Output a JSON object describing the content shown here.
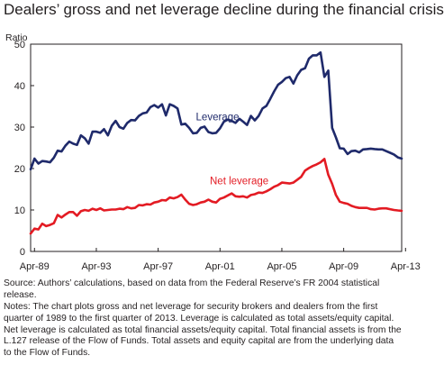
{
  "title": "Dealers’ gross and net leverage decline during the financial crisis",
  "source": "Source: Authors’ calculations, based on data from the Federal Reserve’s FR 2004 statistical release.",
  "notes": "Notes: The chart plots gross and net leverage for security brokers and dealers from the first quarter of 1989 to the first quarter of 2013. Leverage is calculated as total assets/equity capital. Net leverage is calculated as total financial assets/equity capital. Total financial assets is from the L.127 release of the Flow of Funds. Total assets and equity capital are from the underlying data to the Flow of Funds.",
  "chart_data": {
    "type": "line",
    "title": "Dealers’ gross and net leverage decline during the financial crisis",
    "ylabel": "Ratio",
    "xlabel": "",
    "ylim": [
      0,
      50
    ],
    "yticks": [
      "0",
      "10",
      "20",
      "30",
      "40",
      "50"
    ],
    "x_start": "1989-01",
    "xticks": [
      "Apr-89",
      "Apr-93",
      "Apr-97",
      "Apr-01",
      "Apr-05",
      "Apr-09",
      "Apr-13"
    ],
    "grid": false,
    "series": [
      {
        "name": "Leverage",
        "color": "#1f2a6b",
        "values": [
          19.8,
          22.4,
          21.2,
          21.8,
          21.7,
          21.5,
          22.6,
          24.3,
          24.1,
          25.5,
          26.5,
          26.0,
          25.7,
          28.0,
          27.3,
          26.0,
          28.9,
          28.9,
          28.6,
          29.5,
          28.0,
          30.3,
          31.5,
          30.0,
          29.6,
          31.0,
          31.7,
          31.6,
          32.7,
          33.3,
          33.5,
          34.8,
          35.3,
          34.7,
          35.5,
          32.8,
          35.5,
          35.1,
          34.5,
          30.6,
          30.8,
          29.8,
          28.5,
          28.6,
          29.8,
          30.1,
          28.8,
          28.5,
          28.6,
          29.7,
          31.3,
          31.8,
          31.5,
          31.0,
          32.0,
          31.3,
          30.5,
          32.7,
          31.6,
          32.7,
          34.5,
          35.1,
          36.8,
          38.6,
          40.2,
          40.9,
          41.8,
          42.1,
          40.5,
          42.5,
          43.8,
          44.2,
          46.5,
          47.3,
          47.3,
          48.0,
          42.1,
          43.6,
          29.8,
          27.5,
          24.9,
          24.8,
          23.5,
          24.2,
          24.3,
          23.9,
          24.6,
          24.7,
          24.8,
          24.7,
          24.6,
          24.6,
          24.2,
          23.8,
          23.4,
          22.7,
          22.4
        ]
      },
      {
        "name": "Net leverage",
        "color": "#e31b23",
        "values": [
          4.3,
          5.5,
          5.3,
          6.7,
          6.1,
          6.4,
          6.8,
          8.8,
          8.2,
          8.9,
          9.5,
          9.5,
          8.6,
          9.7,
          10.0,
          9.8,
          10.3,
          10.0,
          10.4,
          9.9,
          10.0,
          10.1,
          10.1,
          10.3,
          10.2,
          10.7,
          10.4,
          10.5,
          11.2,
          11.1,
          11.4,
          11.3,
          11.8,
          12.0,
          12.4,
          12.3,
          13.0,
          12.8,
          13.1,
          13.7,
          12.5,
          11.5,
          11.2,
          11.4,
          11.8,
          12.0,
          12.5,
          12.0,
          11.8,
          12.7,
          13.0,
          13.5,
          14.0,
          13.3,
          13.2,
          13.3,
          13.0,
          13.6,
          13.8,
          14.2,
          14.1,
          14.5,
          15.0,
          15.6,
          16.0,
          16.6,
          16.5,
          16.4,
          16.6,
          17.3,
          18.0,
          19.5,
          20.1,
          20.6,
          21.0,
          21.5,
          22.3,
          18.5,
          16.3,
          13.6,
          12.0,
          11.7,
          11.5,
          11.0,
          10.7,
          10.5,
          10.5,
          10.5,
          10.2,
          10.1,
          10.3,
          10.4,
          10.4,
          10.2,
          10.0,
          9.9,
          9.8
        ]
      }
    ],
    "annotations": [
      {
        "text": "Leverage",
        "series": "Leverage"
      },
      {
        "text": "Net leverage",
        "series": "Net leverage"
      }
    ]
  }
}
